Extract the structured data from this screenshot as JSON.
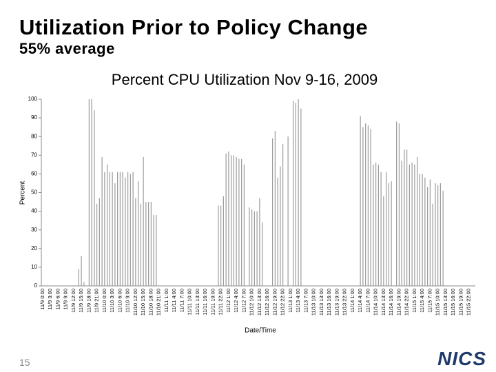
{
  "slide": {
    "title": "Utilization Prior to Policy Change",
    "subtitle": "55% average",
    "page_number": "15",
    "logo": "NICS"
  },
  "chart_data": {
    "type": "bar",
    "title": "Percent CPU Utilization Nov 9-16, 2009",
    "y_label": "Percent",
    "x_label": "Date/Time",
    "color": "#9a9a9a",
    "grid": false,
    "ylim": [
      0,
      100
    ],
    "yticks": [
      0,
      10,
      20,
      30,
      40,
      50,
      60,
      70,
      80,
      90,
      100
    ],
    "categories": [
      "11/9 0:00",
      null,
      null,
      "11/9 3:00",
      null,
      null,
      "11/9 6:00",
      null,
      null,
      "11/9 9:00",
      null,
      null,
      "11/9 12:00",
      null,
      null,
      "11/9 15:00",
      null,
      null,
      "11/9 18:00",
      null,
      null,
      "11/9 21:00",
      null,
      null,
      "11/10 0:00",
      null,
      null,
      "11/10 3:00",
      null,
      null,
      "11/10 6:00",
      null,
      null,
      "11/10 9:00",
      null,
      null,
      "11/10 12:00",
      null,
      null,
      "11/10 15:00",
      null,
      null,
      "11/10 18:00",
      null,
      null,
      "11/10 21:00",
      null,
      null,
      "11/11 1:00",
      null,
      null,
      "11/11 4:00",
      null,
      null,
      "11/11 7:00",
      null,
      null,
      "11/11 10:00",
      null,
      null,
      "11/11 13:00",
      null,
      null,
      "11/11 16:00",
      null,
      null,
      "11/11 19:00",
      null,
      null,
      "11/11 22:00",
      null,
      null,
      "11/12 1:00",
      null,
      null,
      "11/12 4:00",
      null,
      null,
      "11/12 7:00",
      null,
      null,
      "11/12 10:00",
      null,
      null,
      "11/12 13:00",
      null,
      null,
      "11/12 16:00",
      null,
      null,
      "11/12 19:00",
      null,
      null,
      "11/12 22:00",
      null,
      null,
      "11/13 1:00",
      null,
      null,
      "11/13 4:00",
      null,
      null,
      "11/13 7:00",
      null,
      null,
      "11/13 10:00",
      null,
      null,
      "11/13 13:00",
      null,
      null,
      "11/13 16:00",
      null,
      null,
      "11/13 19:00",
      null,
      null,
      "11/13 22:00",
      null,
      null,
      "11/14 1:00",
      null,
      null,
      "11/14 4:00",
      null,
      null,
      "11/14 7:00",
      null,
      null,
      "11/14 10:00",
      null,
      null,
      "11/14 13:00",
      null,
      null,
      "11/14 16:00",
      null,
      null,
      "11/14 19:00",
      null,
      null,
      "11/14 22:00",
      null,
      null,
      "11/15 1:00",
      null,
      null,
      "11/15 4:00",
      null,
      null,
      "11/15 7:00",
      null,
      null,
      "11/15 10:00",
      null,
      null,
      "11/15 13:00",
      null,
      null,
      "11/15 16:00",
      null,
      null,
      "11/15 19:00",
      null,
      null,
      "11/15 22:00",
      null,
      null
    ],
    "values": [
      0,
      0,
      0,
      0,
      0,
      0,
      0,
      0,
      0,
      0,
      0,
      0,
      0,
      0,
      9,
      16,
      2,
      0,
      100,
      100,
      94,
      44,
      47,
      69,
      61,
      65,
      61,
      61,
      55,
      61,
      61,
      61,
      58,
      61,
      60,
      61,
      47,
      56,
      44,
      69,
      45,
      45,
      45,
      38,
      38,
      0,
      0,
      0,
      0,
      0,
      0,
      0,
      0,
      0,
      0,
      0,
      0,
      0,
      0,
      0,
      0,
      0,
      0,
      0,
      0,
      0,
      0,
      0,
      43,
      43,
      48,
      71,
      72,
      70,
      70,
      69,
      68,
      68,
      65,
      0,
      42,
      41,
      40,
      40,
      47,
      34,
      0,
      0,
      0,
      79,
      83,
      58,
      64,
      76,
      0,
      80,
      0,
      99,
      98,
      100,
      95,
      0,
      0,
      0,
      0,
      0,
      0,
      0,
      0,
      0,
      0,
      0,
      0,
      0,
      0,
      0,
      0,
      0,
      0,
      0,
      0,
      0,
      0,
      91,
      85,
      87,
      86,
      84,
      65,
      66,
      65,
      61,
      48,
      61,
      55,
      56,
      0,
      88,
      87,
      67,
      73,
      73,
      65,
      66,
      65,
      69,
      60,
      60,
      58,
      53,
      57,
      44,
      55,
      54,
      55,
      51,
      0,
      0,
      0,
      0,
      0,
      0,
      0,
      0,
      0,
      0,
      0,
      0
    ]
  }
}
